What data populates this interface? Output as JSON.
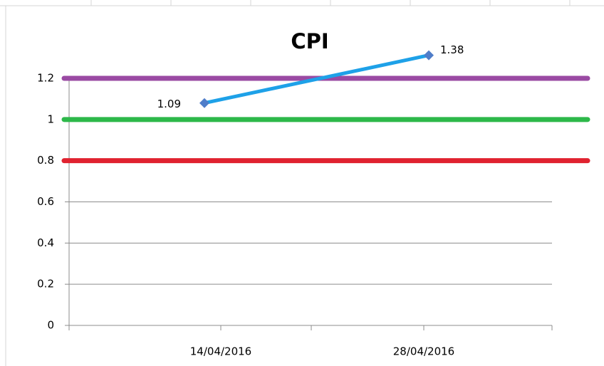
{
  "chart_data": {
    "type": "line",
    "title": "CPI",
    "categories": [
      "14/04/2016",
      "28/04/2016"
    ],
    "series": [
      {
        "name": "CPI",
        "color": "#1ea1e8",
        "marker_color": "#4f7dc9",
        "axis": "y2",
        "values": [
          1.09,
          1.38
        ]
      },
      {
        "color": "#9a4aa3",
        "values": [
          1.2,
          1.2
        ]
      },
      {
        "color": "#2db84a",
        "values": [
          1,
          1
        ]
      },
      {
        "color": "#e0222f",
        "values": [
          0.8,
          0.8
        ]
      }
    ],
    "ylim": [
      0,
      1.2
    ],
    "yticks": [
      0,
      0.2,
      0.4,
      0.6,
      0.8,
      1,
      1.2
    ],
    "y2lim": [
      -0.26,
      1.24
    ],
    "grid": true
  }
}
